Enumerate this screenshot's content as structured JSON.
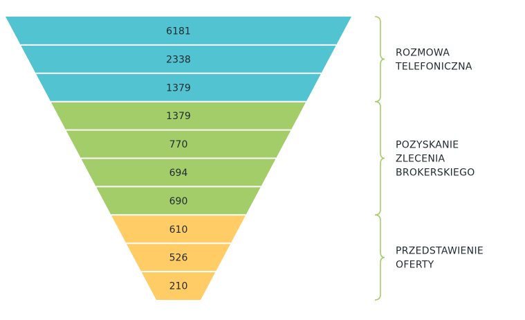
{
  "chart_data": {
    "type": "funnel",
    "values": [
      6181,
      2338,
      1379,
      1379,
      770,
      694,
      690,
      610,
      526,
      210
    ],
    "groups": [
      {
        "lines": [
          "ROZMOWA",
          "TELEFONICZNA"
        ],
        "count": 3,
        "color": "#52c3d0"
      },
      {
        "lines": [
          "POZYSKANIE",
          "ZLECENIA",
          "BROKERSKIEGO"
        ],
        "count": 4,
        "color": "#a3cd68"
      },
      {
        "lines": [
          "PRZEDSTAWIENIE",
          "OFERTY"
        ],
        "count": 3,
        "color": "#ffcc66"
      }
    ],
    "bracket_color": "#a3cd68",
    "separator_color": "#ffffff"
  }
}
